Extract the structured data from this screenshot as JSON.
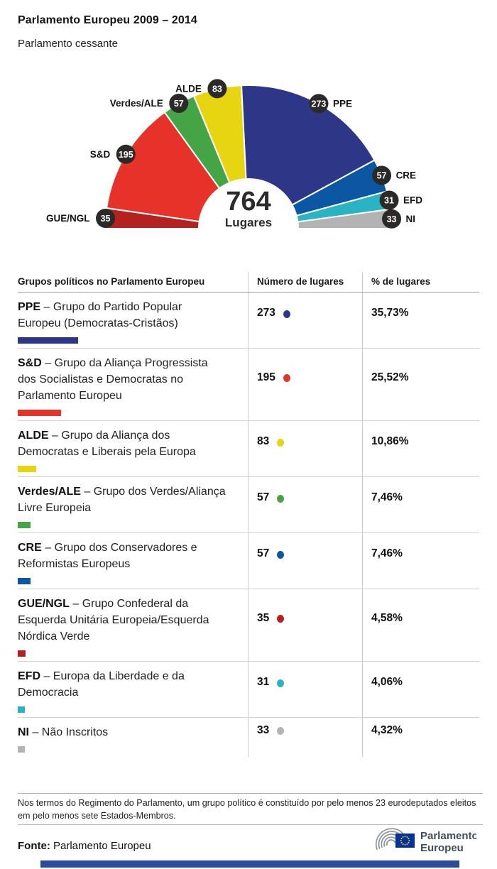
{
  "header": {
    "title": "Parlamento Europeu 2009 – 2014",
    "subtitle": "Parlamento cessante"
  },
  "chart_data": {
    "type": "half-donut",
    "center_value": "764",
    "center_label": "Lugares",
    "total_seats": 764,
    "series": [
      {
        "name": "GUE/NGL",
        "value": 35,
        "color": "#b4211f"
      },
      {
        "name": "S&D",
        "value": 195,
        "color": "#e63229"
      },
      {
        "name": "Verdes/ALE",
        "value": 57,
        "color": "#45a546"
      },
      {
        "name": "ALDE",
        "value": 83,
        "color": "#e8d511"
      },
      {
        "name": "PPE",
        "value": 273,
        "color": "#2e3787"
      },
      {
        "name": "CRE",
        "value": 57,
        "color": "#0c57a3"
      },
      {
        "name": "EFD",
        "value": 31,
        "color": "#2ab3c2"
      },
      {
        "name": "NI",
        "value": 33,
        "color": "#b3b3b3"
      }
    ],
    "badge_color": "#2b2a28",
    "badge_text_color": "#ffffff"
  },
  "table": {
    "headers": [
      "Grupos políticos no Parlamento Europeu",
      "Número de lugares",
      "% de lugares"
    ],
    "rows": [
      {
        "abbr": "PPE",
        "desc": "– Grupo do Partido Popular Europeu (Democratas-Cristãos)",
        "seats": 273,
        "pct": "35,73%",
        "color": "#2e3787"
      },
      {
        "abbr": "S&D",
        "desc": "– Grupo da Aliança Progressista dos Socialistas e Democratas no Parlamento Europeu",
        "seats": 195,
        "pct": "25,52%",
        "color": "#e63229"
      },
      {
        "abbr": "ALDE",
        "desc": "– Grupo da Aliança dos Democratas e Liberais pela Europa",
        "seats": 83,
        "pct": "10,86%",
        "color": "#e8d511"
      },
      {
        "abbr": "Verdes/ALE",
        "desc": "– Grupo dos Verdes/Aliança Livre Europeia",
        "seats": 57,
        "pct": "7,46%",
        "color": "#45a546"
      },
      {
        "abbr": "CRE",
        "desc": "– Grupo dos Conservadores e Reformistas Europeus",
        "seats": 57,
        "pct": "7,46%",
        "color": "#0c57a3"
      },
      {
        "abbr": "GUE/NGL",
        "desc": "– Grupo Confederal da Esquerda Unitária Europeia/Esquerda Nórdica Verde",
        "seats": 35,
        "pct": "4,58%",
        "color": "#b4211f"
      },
      {
        "abbr": "EFD",
        "desc": "– Europa da Liberdade e da Democracia",
        "seats": 31,
        "pct": "4,06%",
        "color": "#2ab3c2"
      },
      {
        "abbr": "NI",
        "desc": "– Não Inscritos",
        "seats": 33,
        "pct": "4,32%",
        "color": "#b3b3b3"
      }
    ]
  },
  "footer": {
    "note": "Nos termos do Regimento do Parlamento, um grupo político é constituído por pelo menos 23 eurodeputados eleitos em pelo menos sete Estados-Membros.",
    "source_label": "Fonte:",
    "source_value": "Parlamento Europeu",
    "logo_line1": "Parlamento",
    "logo_line2": "Europeu"
  }
}
